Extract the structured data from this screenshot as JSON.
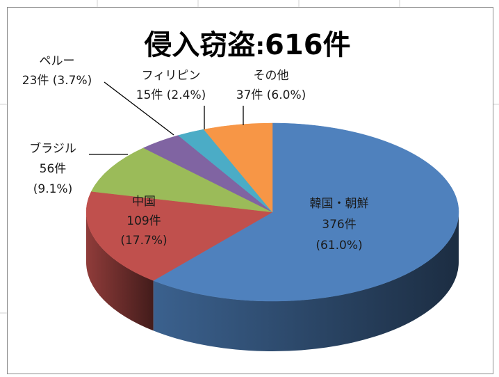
{
  "chart_data": {
    "type": "pie",
    "title": {
      "main": "侵入窃盗",
      "sep": ":",
      "count": "616件"
    },
    "total": 616,
    "slices": [
      {
        "name": "韓国・朝鮮",
        "value": 376,
        "count_label": "376件",
        "pct_label": "(61.0%)",
        "color": "#4f81bd"
      },
      {
        "name": "中国",
        "value": 109,
        "count_label": "109件",
        "pct_label": "(17.7%)",
        "color": "#c0504d"
      },
      {
        "name": "ブラジル",
        "value": 56,
        "count_label": "56件",
        "pct_label": "(9.1%)",
        "color": "#9bbb59"
      },
      {
        "name": "ペルー",
        "value": 23,
        "count_label": "23件",
        "pct_label": "(3.7%)",
        "color": "#8064a2"
      },
      {
        "name": "フィリピン",
        "value": 15,
        "count_label": "15件",
        "pct_label": "(2.4%)",
        "color": "#4bacc6"
      },
      {
        "name": "その他",
        "value": 37,
        "count_label": "37件",
        "pct_label": "(6.0%)",
        "color": "#f79646"
      }
    ]
  }
}
